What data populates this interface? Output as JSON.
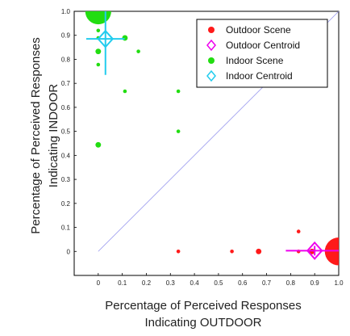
{
  "chart_data": {
    "type": "scatter",
    "title": "",
    "xlabel": [
      "Percentage of Perceived Responses",
      "Indicating OUTDOOR"
    ],
    "ylabel": [
      "Percentage of Perceived Responses",
      "Indicating INDOOR"
    ],
    "xlim": [
      -0.1,
      1.0
    ],
    "ylim": [
      -0.1,
      1.0
    ],
    "x_ticks": [
      "0",
      "0.1",
      "0.2",
      "0.3",
      "0.4",
      "0.5",
      "0.6",
      "0.7",
      "0.8",
      "0.9",
      "1.0"
    ],
    "y_ticks": [
      "0",
      "0.1",
      "0.2",
      "0.3",
      "0.4",
      "0.5",
      "0.6",
      "0.7",
      "0.8",
      "0.9",
      "1.0"
    ],
    "legend_position": "top-right",
    "diagonal_color": "#9999ee",
    "series": [
      {
        "name": "Outdoor Scene",
        "color": "#ff1a1a",
        "marker": "circle",
        "points": [
          {
            "x": 0.333,
            "y": 0.0,
            "size": 1
          },
          {
            "x": 0.556,
            "y": 0.0,
            "size": 1
          },
          {
            "x": 0.667,
            "y": 0.0,
            "size": 1.5
          },
          {
            "x": 0.833,
            "y": 0.083,
            "size": 1
          },
          {
            "x": 0.833,
            "y": 0.0,
            "size": 1
          },
          {
            "x": 0.889,
            "y": 0.0,
            "size": 1.5
          },
          {
            "x": 1.0,
            "y": 0.0,
            "size": 7.5
          }
        ]
      },
      {
        "name": "Outdoor Centroid",
        "color": "#ee00ee",
        "marker": "diamond",
        "points": [
          {
            "x": 0.9,
            "y": 0.003,
            "xerr": 0.12,
            "yerr": 0.02
          }
        ]
      },
      {
        "name": "Indoor Scene",
        "color": "#22dd11",
        "marker": "circle",
        "points": [
          {
            "x": 0.0,
            "y": 1.0,
            "size": 7.0
          },
          {
            "x": 0.0,
            "y": 0.92,
            "size": 1
          },
          {
            "x": 0.0,
            "y": 0.889,
            "size": 1
          },
          {
            "x": 0.0,
            "y": 0.833,
            "size": 1.5
          },
          {
            "x": 0.0,
            "y": 0.778,
            "size": 1
          },
          {
            "x": 0.0,
            "y": 0.444,
            "size": 1.5
          },
          {
            "x": 0.111,
            "y": 0.889,
            "size": 1.5
          },
          {
            "x": 0.111,
            "y": 0.667,
            "size": 1
          },
          {
            "x": 0.167,
            "y": 0.833,
            "size": 1
          },
          {
            "x": 0.333,
            "y": 0.667,
            "size": 1
          },
          {
            "x": 0.333,
            "y": 0.5,
            "size": 1
          }
        ]
      },
      {
        "name": "Indoor Centroid",
        "color": "#22ccee",
        "marker": "diamond",
        "points": [
          {
            "x": 0.03,
            "y": 0.885,
            "xerr": 0.08,
            "yerr": 0.15
          }
        ]
      }
    ]
  }
}
